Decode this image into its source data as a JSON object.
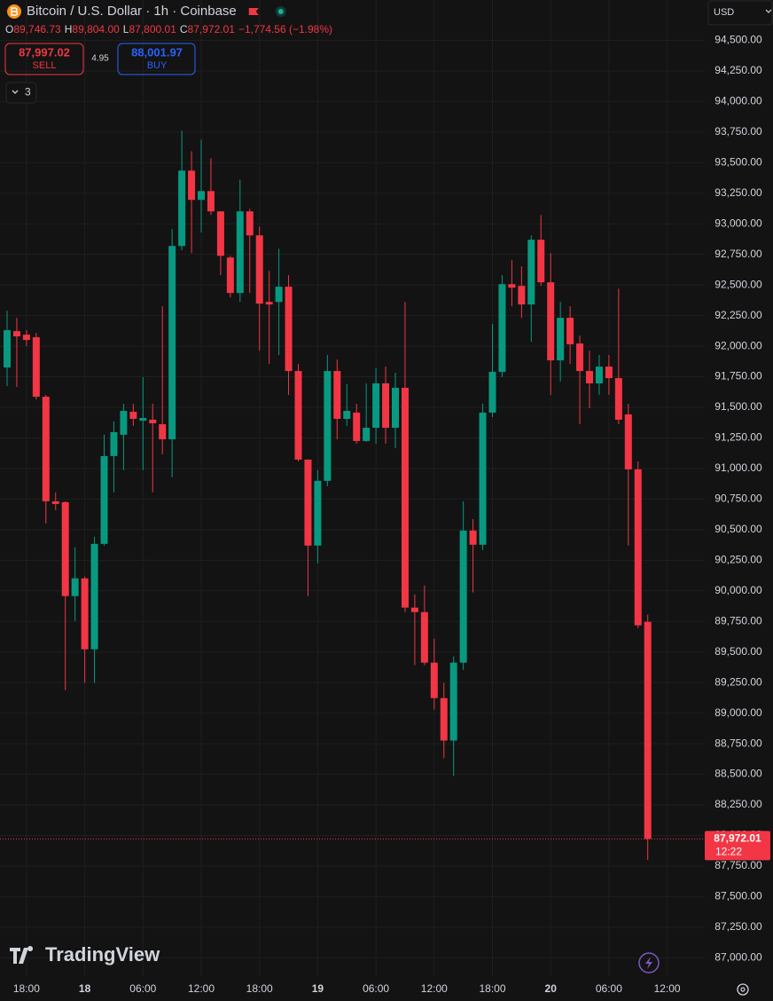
{
  "header": {
    "title": "Bitcoin / U.S. Dollar · 1h · Coinbase",
    "ohlc": [
      {
        "label": "O",
        "value": "89,746.73"
      },
      {
        "label": "H",
        "value": "89,804.00"
      },
      {
        "label": "L",
        "value": "87,800.01"
      },
      {
        "label": "C",
        "value": "87,972.01"
      }
    ],
    "change": "−1,774.56 (−1.98%)",
    "sell": {
      "price": "87,997.02",
      "label": "SELL"
    },
    "spread": "4.95",
    "buy": {
      "price": "88,001.97",
      "label": "BUY"
    },
    "indicators": "3",
    "currency": "USD",
    "logo": "TradingView"
  },
  "chart_data": {
    "type": "candlestick",
    "categories": [
      null,
      null,
      "18:00",
      null,
      null,
      null,
      null,
      null,
      "18",
      null,
      null,
      null,
      null,
      null,
      "06:00",
      null,
      null,
      null,
      null,
      null,
      "12:00",
      null,
      null,
      null,
      null,
      null,
      "18:00",
      null,
      null,
      null,
      null,
      null,
      "19",
      null,
      null,
      null,
      null,
      null,
      "06:00",
      null,
      null,
      null,
      null,
      null,
      "12:00",
      null,
      null,
      null,
      null,
      null,
      "18:00",
      null,
      null,
      null,
      null,
      null,
      "20",
      null,
      null,
      null,
      null,
      null,
      "06:00",
      null,
      null,
      null,
      null,
      null,
      "12:00"
    ],
    "open": [
      91826,
      92123,
      92094,
      92073,
      91587,
      90732,
      90725,
      89957,
      90102,
      89522,
      90384,
      91102,
      91276,
      91464,
      91391,
      91399,
      91362,
      91239,
      92819,
      93435,
      93196,
      93268,
      93102,
      92725,
      92435,
      93102,
      92906,
      92362,
      92362,
      92486,
      91797,
      91073,
      90370,
      90899,
      91797,
      91406,
      91457,
      91225,
      91333,
      91696,
      91333,
      91660,
      89863,
      89826,
      89413,
      89123,
      88776,
      89413,
      90493,
      90377,
      91457,
      91790,
      92507,
      92493,
      92341,
      92870,
      92522,
      91884,
      92232,
      92022,
      91797,
      91696,
      91833,
      91739,
      91442,
      90993,
      89746.73,
      null,
      null
    ],
    "high": [
      92290,
      92232,
      92131,
      92109,
      91602,
      90805,
      90732,
      90355,
      90116,
      90442,
      91276,
      91384,
      91529,
      91529,
      91747,
      91529,
      92326,
      92957,
      93761,
      93594,
      93688,
      93536,
      93102,
      92739,
      93362,
      93123,
      92978,
      92616,
      92797,
      92580,
      91855,
      91073,
      90986,
      91928,
      91891,
      91689,
      91529,
      91696,
      91819,
      91833,
      91783,
      92362,
      89971,
      90044,
      89609,
      89247,
      89464,
      90732,
      90587,
      91529,
      92181,
      92580,
      92703,
      92652,
      92906,
      93073,
      92761,
      92362,
      92326,
      92087,
      91964,
      91928,
      91928,
      92471,
      91529,
      91058,
      89804,
      null,
      null
    ],
    "low": [
      91674,
      91667,
      92000,
      91565,
      90551,
      90660,
      89189,
      89754,
      89247,
      89247,
      90370,
      90805,
      90986,
      91348,
      90986,
      90805,
      91116,
      90928,
      92783,
      92761,
      92928,
      93073,
      92580,
      92399,
      92362,
      92435,
      91964,
      91855,
      91928,
      91602,
      91058,
      89957,
      90225,
      90855,
      91239,
      91348,
      91203,
      91218,
      91203,
      91203,
      91167,
      89826,
      89392,
      89392,
      89029,
      88631,
      88486,
      89355,
      89986,
      90334,
      91420,
      91747,
      92326,
      92232,
      92036,
      92493,
      91602,
      91710,
      91855,
      91362,
      91493,
      91602,
      91602,
      91362,
      90370,
      89696,
      87800.01,
      null,
      null
    ],
    "close": [
      92131,
      92080,
      92051,
      91587,
      90732,
      90710,
      89957,
      90102,
      89522,
      90384,
      91102,
      91297,
      91471,
      91406,
      91413,
      91370,
      91239,
      92819,
      93435,
      93196,
      93268,
      93102,
      92739,
      92435,
      93102,
      92906,
      92348,
      92341,
      92486,
      91797,
      91073,
      90370,
      90899,
      91797,
      91406,
      91471,
      91225,
      91333,
      91696,
      91333,
      91660,
      89863,
      89826,
      89413,
      89123,
      88776,
      89413,
      90493,
      90377,
      91457,
      91790,
      92507,
      92478,
      92341,
      92870,
      92522,
      91884,
      92232,
      92015,
      91797,
      91696,
      91833,
      91739,
      91399,
      90993,
      89718,
      87972.01,
      null,
      null
    ],
    "up_color": "#089981",
    "down_color": "#f23645",
    "ylim": [
      86850,
      94830
    ],
    "yticks": [
      {
        "value": 87000,
        "label": "87,000.00"
      },
      {
        "value": 87250,
        "label": "87,250.00"
      },
      {
        "value": 87500,
        "label": "87,500.00"
      },
      {
        "value": 87750,
        "label": "87,750.00"
      },
      {
        "value": 88000,
        "label": "88,000.00"
      },
      {
        "value": 88250,
        "label": "88,250.00"
      },
      {
        "value": 88500,
        "label": "88,500.00"
      },
      {
        "value": 88750,
        "label": "88,750.00"
      },
      {
        "value": 89000,
        "label": "89,000.00"
      },
      {
        "value": 89250,
        "label": "89,250.00"
      },
      {
        "value": 89500,
        "label": "89,500.00"
      },
      {
        "value": 89750,
        "label": "89,750.00"
      },
      {
        "value": 90000,
        "label": "90,000.00"
      },
      {
        "value": 90250,
        "label": "90,250.00"
      },
      {
        "value": 90500,
        "label": "90,500.00"
      },
      {
        "value": 90750,
        "label": "90,750.00"
      },
      {
        "value": 91000,
        "label": "91,000.00"
      },
      {
        "value": 91250,
        "label": "91,250.00"
      },
      {
        "value": 91500,
        "label": "91,500.00"
      },
      {
        "value": 91750,
        "label": "91,750.00"
      },
      {
        "value": 92000,
        "label": "92,000.00"
      },
      {
        "value": 92250,
        "label": "92,250.00"
      },
      {
        "value": 92500,
        "label": "92,500.00"
      },
      {
        "value": 92750,
        "label": "92,750.00"
      },
      {
        "value": 93000,
        "label": "93,000.00"
      },
      {
        "value": 93250,
        "label": "93,250.00"
      },
      {
        "value": 93500,
        "label": "93,500.00"
      },
      {
        "value": 93750,
        "label": "93,750.00"
      },
      {
        "value": 94000,
        "label": "94,000.00"
      },
      {
        "value": 94250,
        "label": "94,250.00"
      },
      {
        "value": 94500,
        "label": "94,500.00"
      }
    ],
    "grid": true,
    "price_label": "87,972.01",
    "countdown": "12:22"
  }
}
